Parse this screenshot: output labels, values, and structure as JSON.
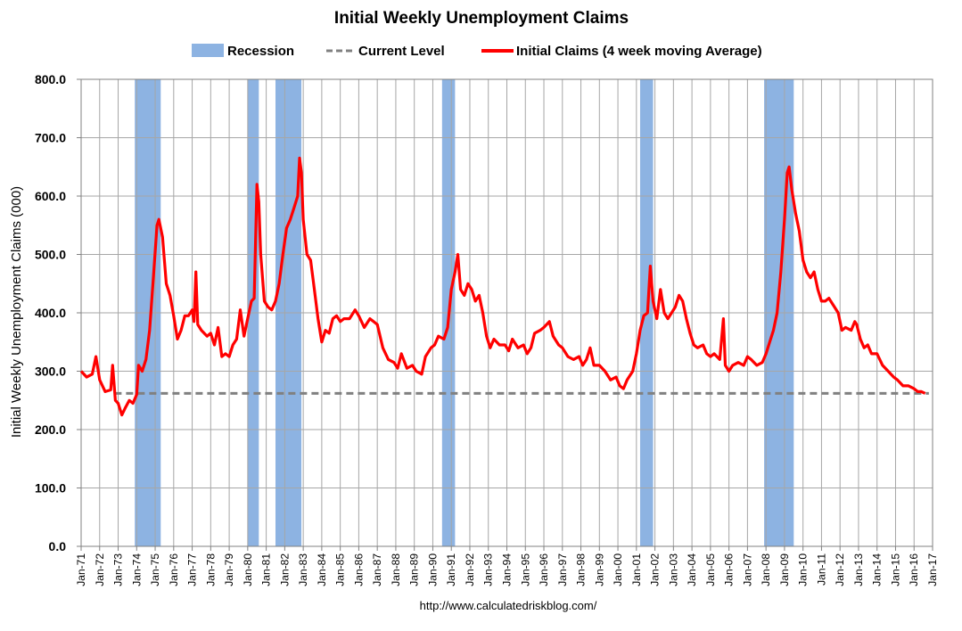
{
  "chart_data": {
    "type": "line",
    "title": "Initial Weekly Unemployment Claims",
    "ylabel": "Initial Weekly Unemployment Claims (000)",
    "xlabel": "",
    "source": "http://www.calculatedriskblog.com/",
    "ylim": [
      0,
      800
    ],
    "xlim": [
      1971.0,
      2017.0
    ],
    "y_ticks": [
      "0.0",
      "100.0",
      "200.0",
      "300.0",
      "400.0",
      "500.0",
      "600.0",
      "700.0",
      "800.0"
    ],
    "x_ticks": [
      "Jan-71",
      "Jan-72",
      "Jan-73",
      "Jan-74",
      "Jan-75",
      "Jan-76",
      "Jan-77",
      "Jan-78",
      "Jan-79",
      "Jan-80",
      "Jan-81",
      "Jan-82",
      "Jan-83",
      "Jan-84",
      "Jan-85",
      "Jan-86",
      "Jan-87",
      "Jan-88",
      "Jan-89",
      "Jan-90",
      "Jan-91",
      "Jan-92",
      "Jan-93",
      "Jan-94",
      "Jan-95",
      "Jan-96",
      "Jan-97",
      "Jan-98",
      "Jan-99",
      "Jan-00",
      "Jan-01",
      "Jan-02",
      "Jan-03",
      "Jan-04",
      "Jan-05",
      "Jan-06",
      "Jan-07",
      "Jan-08",
      "Jan-09",
      "Jan-10",
      "Jan-11",
      "Jan-12",
      "Jan-13",
      "Jan-14",
      "Jan-15",
      "Jan-16",
      "Jan-17"
    ],
    "grid": true,
    "legend_position": "top",
    "legend": [
      "Recession",
      "Current Level",
      "Initial Claims (4 week moving Average)"
    ],
    "colors": {
      "recession": "#8DB3E2",
      "current": "#808080",
      "claims": "#FF0000"
    },
    "recessions": [
      {
        "start": 1973.9,
        "end": 1975.3
      },
      {
        "start": 1980.0,
        "end": 1980.6
      },
      {
        "start": 1981.5,
        "end": 1982.9
      },
      {
        "start": 1990.5,
        "end": 1991.2
      },
      {
        "start": 2001.2,
        "end": 2001.9
      },
      {
        "start": 2007.9,
        "end": 2009.5
      }
    ],
    "current_level": 262,
    "series": [
      {
        "name": "Initial Claims (4 week moving Average)",
        "points": [
          [
            1971.0,
            300
          ],
          [
            1971.3,
            290
          ],
          [
            1971.6,
            295
          ],
          [
            1971.8,
            325
          ],
          [
            1972.0,
            285
          ],
          [
            1972.3,
            265
          ],
          [
            1972.6,
            268
          ],
          [
            1972.7,
            310
          ],
          [
            1972.85,
            250
          ],
          [
            1973.0,
            245
          ],
          [
            1973.2,
            225
          ],
          [
            1973.4,
            238
          ],
          [
            1973.6,
            250
          ],
          [
            1973.8,
            245
          ],
          [
            1974.0,
            260
          ],
          [
            1974.1,
            310
          ],
          [
            1974.3,
            300
          ],
          [
            1974.5,
            320
          ],
          [
            1974.7,
            370
          ],
          [
            1974.9,
            460
          ],
          [
            1975.1,
            550
          ],
          [
            1975.2,
            560
          ],
          [
            1975.4,
            530
          ],
          [
            1975.6,
            450
          ],
          [
            1975.8,
            430
          ],
          [
            1976.0,
            395
          ],
          [
            1976.2,
            355
          ],
          [
            1976.4,
            370
          ],
          [
            1976.6,
            395
          ],
          [
            1976.8,
            395
          ],
          [
            1977.0,
            405
          ],
          [
            1977.1,
            385
          ],
          [
            1977.2,
            470
          ],
          [
            1977.3,
            380
          ],
          [
            1977.5,
            370
          ],
          [
            1977.8,
            360
          ],
          [
            1978.0,
            365
          ],
          [
            1978.2,
            345
          ],
          [
            1978.4,
            375
          ],
          [
            1978.6,
            325
          ],
          [
            1978.8,
            330
          ],
          [
            1979.0,
            325
          ],
          [
            1979.2,
            345
          ],
          [
            1979.4,
            355
          ],
          [
            1979.6,
            405
          ],
          [
            1979.8,
            360
          ],
          [
            1980.0,
            390
          ],
          [
            1980.2,
            420
          ],
          [
            1980.35,
            425
          ],
          [
            1980.5,
            620
          ],
          [
            1980.6,
            590
          ],
          [
            1980.7,
            500
          ],
          [
            1980.9,
            420
          ],
          [
            1981.1,
            410
          ],
          [
            1981.3,
            405
          ],
          [
            1981.5,
            420
          ],
          [
            1981.7,
            450
          ],
          [
            1981.9,
            500
          ],
          [
            1982.1,
            545
          ],
          [
            1982.3,
            560
          ],
          [
            1982.5,
            580
          ],
          [
            1982.7,
            600
          ],
          [
            1982.8,
            665
          ],
          [
            1982.9,
            640
          ],
          [
            1983.0,
            560
          ],
          [
            1983.2,
            500
          ],
          [
            1983.4,
            490
          ],
          [
            1983.6,
            440
          ],
          [
            1983.8,
            390
          ],
          [
            1984.0,
            350
          ],
          [
            1984.2,
            370
          ],
          [
            1984.4,
            365
          ],
          [
            1984.6,
            390
          ],
          [
            1984.8,
            395
          ],
          [
            1985.0,
            385
          ],
          [
            1985.2,
            390
          ],
          [
            1985.5,
            390
          ],
          [
            1985.8,
            405
          ],
          [
            1986.0,
            395
          ],
          [
            1986.3,
            375
          ],
          [
            1986.6,
            390
          ],
          [
            1986.8,
            385
          ],
          [
            1987.0,
            380
          ],
          [
            1987.3,
            340
          ],
          [
            1987.6,
            320
          ],
          [
            1987.9,
            315
          ],
          [
            1988.1,
            305
          ],
          [
            1988.3,
            330
          ],
          [
            1988.6,
            305
          ],
          [
            1988.9,
            310
          ],
          [
            1989.1,
            300
          ],
          [
            1989.4,
            295
          ],
          [
            1989.6,
            325
          ],
          [
            1989.9,
            340
          ],
          [
            1990.1,
            345
          ],
          [
            1990.3,
            360
          ],
          [
            1990.6,
            355
          ],
          [
            1990.8,
            375
          ],
          [
            1991.0,
            440
          ],
          [
            1991.2,
            470
          ],
          [
            1991.35,
            500
          ],
          [
            1991.5,
            440
          ],
          [
            1991.7,
            430
          ],
          [
            1991.9,
            450
          ],
          [
            1992.1,
            440
          ],
          [
            1992.3,
            420
          ],
          [
            1992.5,
            430
          ],
          [
            1992.7,
            400
          ],
          [
            1992.9,
            360
          ],
          [
            1993.1,
            340
          ],
          [
            1993.3,
            355
          ],
          [
            1993.6,
            345
          ],
          [
            1993.9,
            345
          ],
          [
            1994.1,
            335
          ],
          [
            1994.3,
            355
          ],
          [
            1994.6,
            340
          ],
          [
            1994.9,
            345
          ],
          [
            1995.1,
            330
          ],
          [
            1995.3,
            340
          ],
          [
            1995.5,
            365
          ],
          [
            1995.8,
            370
          ],
          [
            1996.0,
            375
          ],
          [
            1996.3,
            385
          ],
          [
            1996.5,
            360
          ],
          [
            1996.8,
            345
          ],
          [
            1997.0,
            340
          ],
          [
            1997.3,
            325
          ],
          [
            1997.6,
            320
          ],
          [
            1997.9,
            325
          ],
          [
            1998.1,
            310
          ],
          [
            1998.3,
            320
          ],
          [
            1998.5,
            340
          ],
          [
            1998.7,
            310
          ],
          [
            1999.0,
            310
          ],
          [
            1999.3,
            300
          ],
          [
            1999.6,
            285
          ],
          [
            1999.9,
            290
          ],
          [
            2000.1,
            275
          ],
          [
            2000.3,
            270
          ],
          [
            2000.5,
            285
          ],
          [
            2000.8,
            300
          ],
          [
            2001.0,
            330
          ],
          [
            2001.2,
            370
          ],
          [
            2001.4,
            395
          ],
          [
            2001.6,
            400
          ],
          [
            2001.75,
            480
          ],
          [
            2001.9,
            420
          ],
          [
            2002.1,
            390
          ],
          [
            2002.3,
            440
          ],
          [
            2002.5,
            400
          ],
          [
            2002.7,
            390
          ],
          [
            2002.9,
            400
          ],
          [
            2003.1,
            410
          ],
          [
            2003.3,
            430
          ],
          [
            2003.5,
            420
          ],
          [
            2003.7,
            390
          ],
          [
            2003.9,
            365
          ],
          [
            2004.1,
            345
          ],
          [
            2004.3,
            340
          ],
          [
            2004.6,
            345
          ],
          [
            2004.8,
            330
          ],
          [
            2005.0,
            325
          ],
          [
            2005.2,
            330
          ],
          [
            2005.5,
            320
          ],
          [
            2005.7,
            390
          ],
          [
            2005.8,
            310
          ],
          [
            2006.0,
            300
          ],
          [
            2006.2,
            310
          ],
          [
            2006.5,
            315
          ],
          [
            2006.8,
            310
          ],
          [
            2007.0,
            325
          ],
          [
            2007.2,
            320
          ],
          [
            2007.5,
            310
          ],
          [
            2007.8,
            315
          ],
          [
            2008.0,
            330
          ],
          [
            2008.2,
            350
          ],
          [
            2008.4,
            370
          ],
          [
            2008.6,
            400
          ],
          [
            2008.8,
            470
          ],
          [
            2009.0,
            560
          ],
          [
            2009.15,
            640
          ],
          [
            2009.25,
            650
          ],
          [
            2009.4,
            610
          ],
          [
            2009.6,
            570
          ],
          [
            2009.8,
            540
          ],
          [
            2010.0,
            490
          ],
          [
            2010.2,
            470
          ],
          [
            2010.4,
            460
          ],
          [
            2010.6,
            470
          ],
          [
            2010.8,
            440
          ],
          [
            2011.0,
            420
          ],
          [
            2011.2,
            420
          ],
          [
            2011.4,
            425
          ],
          [
            2011.7,
            410
          ],
          [
            2011.9,
            400
          ],
          [
            2012.1,
            370
          ],
          [
            2012.3,
            375
          ],
          [
            2012.6,
            370
          ],
          [
            2012.8,
            385
          ],
          [
            2012.9,
            380
          ],
          [
            2013.1,
            355
          ],
          [
            2013.3,
            340
          ],
          [
            2013.5,
            345
          ],
          [
            2013.7,
            330
          ],
          [
            2014.0,
            330
          ],
          [
            2014.3,
            310
          ],
          [
            2014.6,
            300
          ],
          [
            2014.9,
            290
          ],
          [
            2015.1,
            285
          ],
          [
            2015.4,
            275
          ],
          [
            2015.7,
            275
          ],
          [
            2016.0,
            270
          ],
          [
            2016.2,
            265
          ],
          [
            2016.4,
            265
          ],
          [
            2016.6,
            262
          ]
        ]
      }
    ]
  }
}
